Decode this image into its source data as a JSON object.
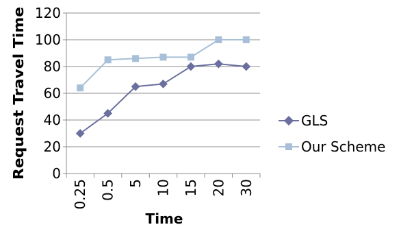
{
  "chart_data": {
    "type": "line",
    "title": "",
    "xlabel": "Time",
    "ylabel": "Request Travel Time",
    "categories": [
      "0.25",
      "0.5",
      "5",
      "10",
      "15",
      "20",
      "30"
    ],
    "ylim": [
      0,
      120
    ],
    "yticks": [
      "0",
      "20",
      "40",
      "60",
      "80",
      "100",
      "120"
    ],
    "grid": "horizontal",
    "legend_position": "right",
    "series": [
      {
        "name": "GLS",
        "values": [
          30,
          45,
          65,
          67,
          80,
          82,
          80
        ],
        "color": "#6a6f9e",
        "marker": "diamond"
      },
      {
        "name": "Our Scheme",
        "values": [
          64,
          85,
          86,
          87,
          87,
          100,
          100
        ],
        "color": "#a7bfd8",
        "marker": "square"
      }
    ]
  }
}
